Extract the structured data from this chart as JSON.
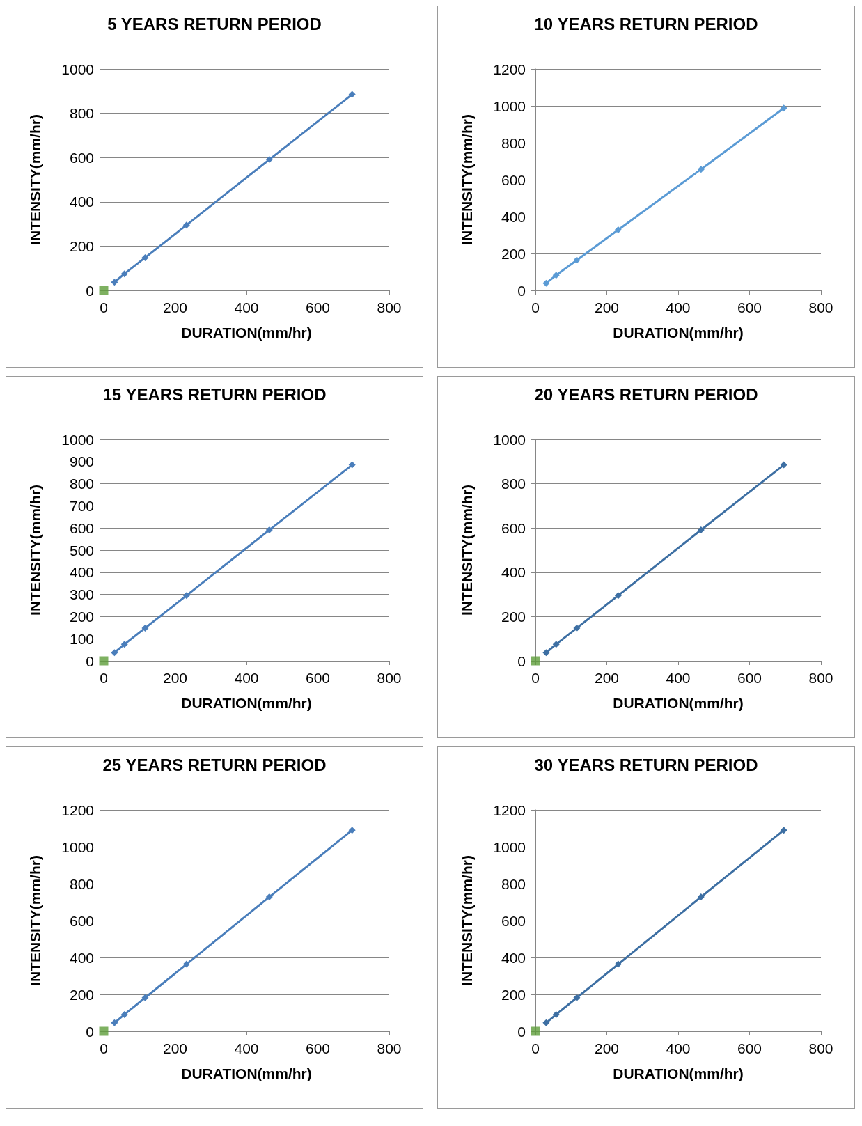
{
  "chart_data": [
    {
      "type": "line",
      "title": "5 YEARS RETURN PERIOD",
      "xlabel": "DURATION(mm/hr)",
      "ylabel": "INTENSITY(mm/hr)",
      "xlim": [
        0,
        800
      ],
      "xticks": [
        0,
        200,
        400,
        600,
        800
      ],
      "ylim": [
        0,
        1000
      ],
      "yticks": [
        0,
        200,
        400,
        600,
        800,
        1000
      ],
      "grid": "y",
      "series": [
        {
          "color": "#4a7ebb",
          "marker": "diamond",
          "x": [
            30,
            58,
            116,
            232,
            464,
            696
          ],
          "values": [
            37,
            75,
            148,
            295,
            591,
            885
          ]
        },
        {
          "type": "scatter",
          "color": "#5e9e3a",
          "marker": "square",
          "x": [
            0
          ],
          "values": [
            0
          ]
        }
      ]
    },
    {
      "type": "line",
      "title": "10 YEARS RETURN PERIOD",
      "xlabel": "DURATION(mm/hr)",
      "ylabel": "INTENSITY(mm/hr)",
      "xlim": [
        0,
        800
      ],
      "xticks": [
        0,
        200,
        400,
        600,
        800
      ],
      "ylim": [
        0,
        1200
      ],
      "yticks": [
        0,
        200,
        400,
        600,
        800,
        1000,
        1200
      ],
      "grid": "y",
      "series": [
        {
          "color": "#5b9bd5",
          "marker": "diamond",
          "x": [
            30,
            58,
            116,
            232,
            464,
            696
          ],
          "values": [
            39,
            82,
            164,
            328,
            656,
            988
          ]
        }
      ]
    },
    {
      "type": "line",
      "title": "15 YEARS RETURN PERIOD",
      "xlabel": "DURATION(mm/hr)",
      "ylabel": "INTENSITY(mm/hr)",
      "xlim": [
        0,
        800
      ],
      "xticks": [
        0,
        200,
        400,
        600,
        800
      ],
      "ylim": [
        0,
        1000
      ],
      "yticks": [
        0,
        100,
        200,
        300,
        400,
        500,
        600,
        700,
        800,
        900,
        1000
      ],
      "grid": "y",
      "series": [
        {
          "color": "#4a7ebb",
          "marker": "diamond",
          "x": [
            30,
            58,
            116,
            232,
            464,
            696
          ],
          "values": [
            37,
            75,
            148,
            295,
            591,
            885
          ]
        },
        {
          "type": "scatter",
          "color": "#5e9e3a",
          "marker": "square",
          "x": [
            0
          ],
          "values": [
            0
          ]
        }
      ]
    },
    {
      "type": "line",
      "title": "20 YEARS RETURN PERIOD",
      "xlabel": "DURATION(mm/hr)",
      "ylabel": "INTENSITY(mm/hr)",
      "xlim": [
        0,
        800
      ],
      "xticks": [
        0,
        200,
        400,
        600,
        800
      ],
      "ylim": [
        0,
        1000
      ],
      "yticks": [
        0,
        200,
        400,
        600,
        800,
        1000
      ],
      "grid": "y",
      "series": [
        {
          "color": "#3d6fa3",
          "marker": "diamond",
          "x": [
            30,
            58,
            116,
            232,
            464,
            696
          ],
          "values": [
            37,
            75,
            148,
            295,
            591,
            885
          ]
        },
        {
          "type": "scatter",
          "color": "#5e9e3a",
          "marker": "square",
          "x": [
            0
          ],
          "values": [
            0
          ]
        }
      ]
    },
    {
      "type": "line",
      "title": "25 YEARS RETURN PERIOD",
      "xlabel": "DURATION(mm/hr)",
      "ylabel": "INTENSITY(mm/hr)",
      "xlim": [
        0,
        800
      ],
      "xticks": [
        0,
        200,
        400,
        600,
        800
      ],
      "ylim": [
        0,
        1200
      ],
      "yticks": [
        0,
        200,
        400,
        600,
        800,
        1000,
        1200
      ],
      "grid": "y",
      "series": [
        {
          "color": "#4a7ebb",
          "marker": "diamond",
          "x": [
            30,
            58,
            116,
            232,
            464,
            696
          ],
          "values": [
            46,
            91,
            182,
            364,
            728,
            1090
          ]
        },
        {
          "type": "scatter",
          "color": "#5e9e3a",
          "marker": "square",
          "x": [
            0
          ],
          "values": [
            0
          ]
        }
      ]
    },
    {
      "type": "line",
      "title": "30 YEARS RETURN PERIOD",
      "xlabel": "DURATION(mm/hr)",
      "ylabel": "INTENSITY(mm/hr)",
      "xlim": [
        0,
        800
      ],
      "xticks": [
        0,
        200,
        400,
        600,
        800
      ],
      "ylim": [
        0,
        1200
      ],
      "yticks": [
        0,
        200,
        400,
        600,
        800,
        1000,
        1200
      ],
      "grid": "y",
      "series": [
        {
          "color": "#3d6fa3",
          "marker": "diamond",
          "x": [
            30,
            58,
            116,
            232,
            464,
            696
          ],
          "values": [
            46,
            91,
            182,
            364,
            728,
            1090
          ]
        },
        {
          "type": "scatter",
          "color": "#5e9e3a",
          "marker": "square",
          "x": [
            0
          ],
          "values": [
            0
          ]
        }
      ]
    }
  ]
}
